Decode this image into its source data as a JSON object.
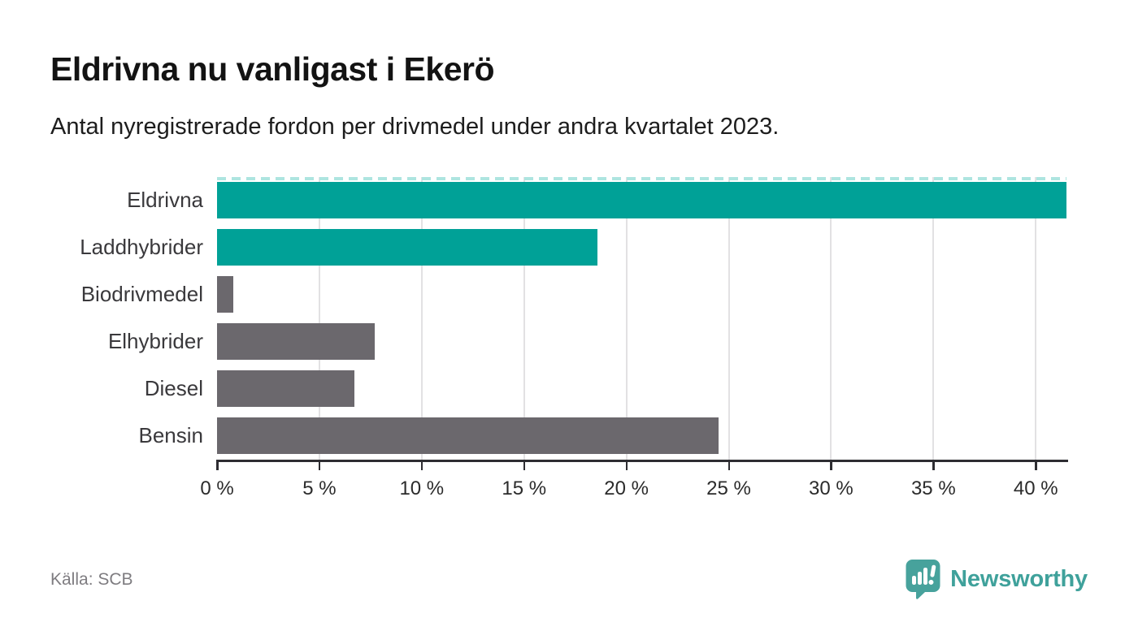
{
  "header": {
    "title": "Eldrivna nu vanligast i Ekerö",
    "subtitle": "Antal nyregistrerade fordon per drivmedel under andra kvartalet 2023."
  },
  "chart_data": {
    "type": "bar",
    "orientation": "horizontal",
    "categories": [
      "Eldrivna",
      "Laddhybrider",
      "Biodrivmedel",
      "Elhybrider",
      "Diesel",
      "Bensin"
    ],
    "values": [
      41.5,
      18.6,
      0.8,
      7.7,
      6.7,
      24.5
    ],
    "value_unit": "%",
    "bar_colors": [
      "#00a197",
      "#00a197",
      "#6b686d",
      "#6b686d",
      "#6b686d",
      "#6b686d"
    ],
    "highlight_color": "#00a197",
    "default_color": "#6b686d",
    "xlim": [
      0,
      41.5
    ],
    "x_ticks": [
      0,
      5,
      10,
      15,
      20,
      25,
      30,
      35,
      40
    ],
    "x_tick_labels": [
      "0 %",
      "5 %",
      "10 %",
      "15 %",
      "20 %",
      "25 %",
      "30 %",
      "35 %",
      "40 %"
    ],
    "grid": "vertical-light",
    "legend": "none",
    "annotations": "dashed light-teal edge along top of plot (max bar reaches axis limit)"
  },
  "footer": {
    "source": "Källa: SCB",
    "brand": "Newsworthy",
    "brand_color": "#3fa19b"
  }
}
